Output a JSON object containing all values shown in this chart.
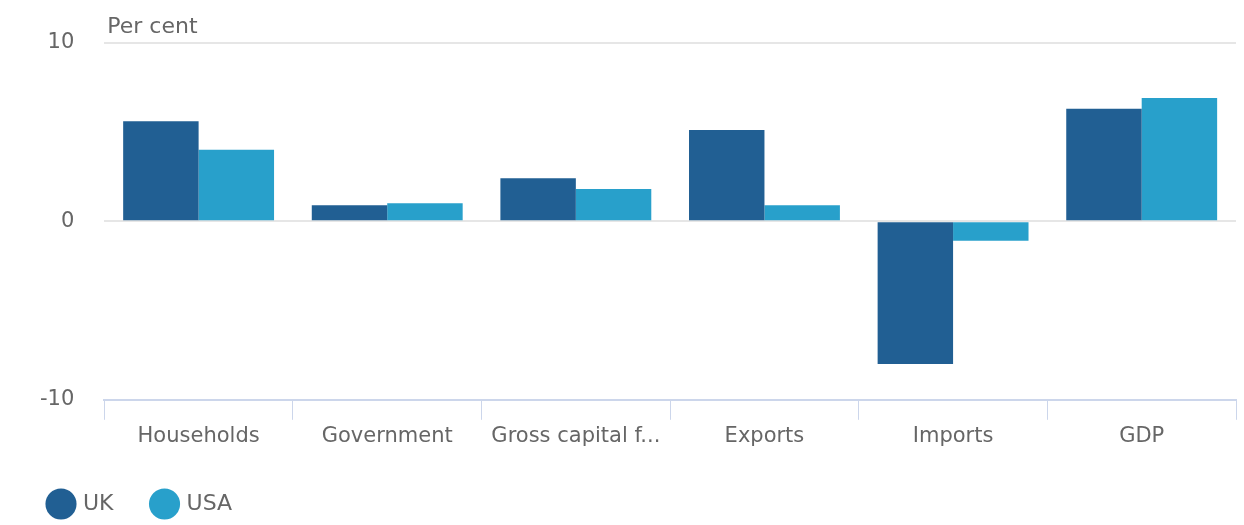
{
  "chart_data": {
    "type": "bar",
    "ylabel": "Per cent",
    "categories": [
      "Households",
      "Government",
      "Gross capital f...",
      "Exports",
      "Imports",
      "GDP"
    ],
    "series": [
      {
        "name": "UK",
        "color": "#215f93",
        "values": [
          5.6,
          0.9,
          2.4,
          5.1,
          -8.0,
          6.3
        ]
      },
      {
        "name": "USA",
        "color": "#28a0cb",
        "values": [
          4.0,
          1.0,
          1.8,
          0.9,
          -1.1,
          6.9
        ]
      }
    ],
    "ylim": [
      -10,
      10
    ],
    "yticks": [
      -10,
      0,
      10
    ],
    "grid": "y",
    "legend": "bottom left"
  }
}
